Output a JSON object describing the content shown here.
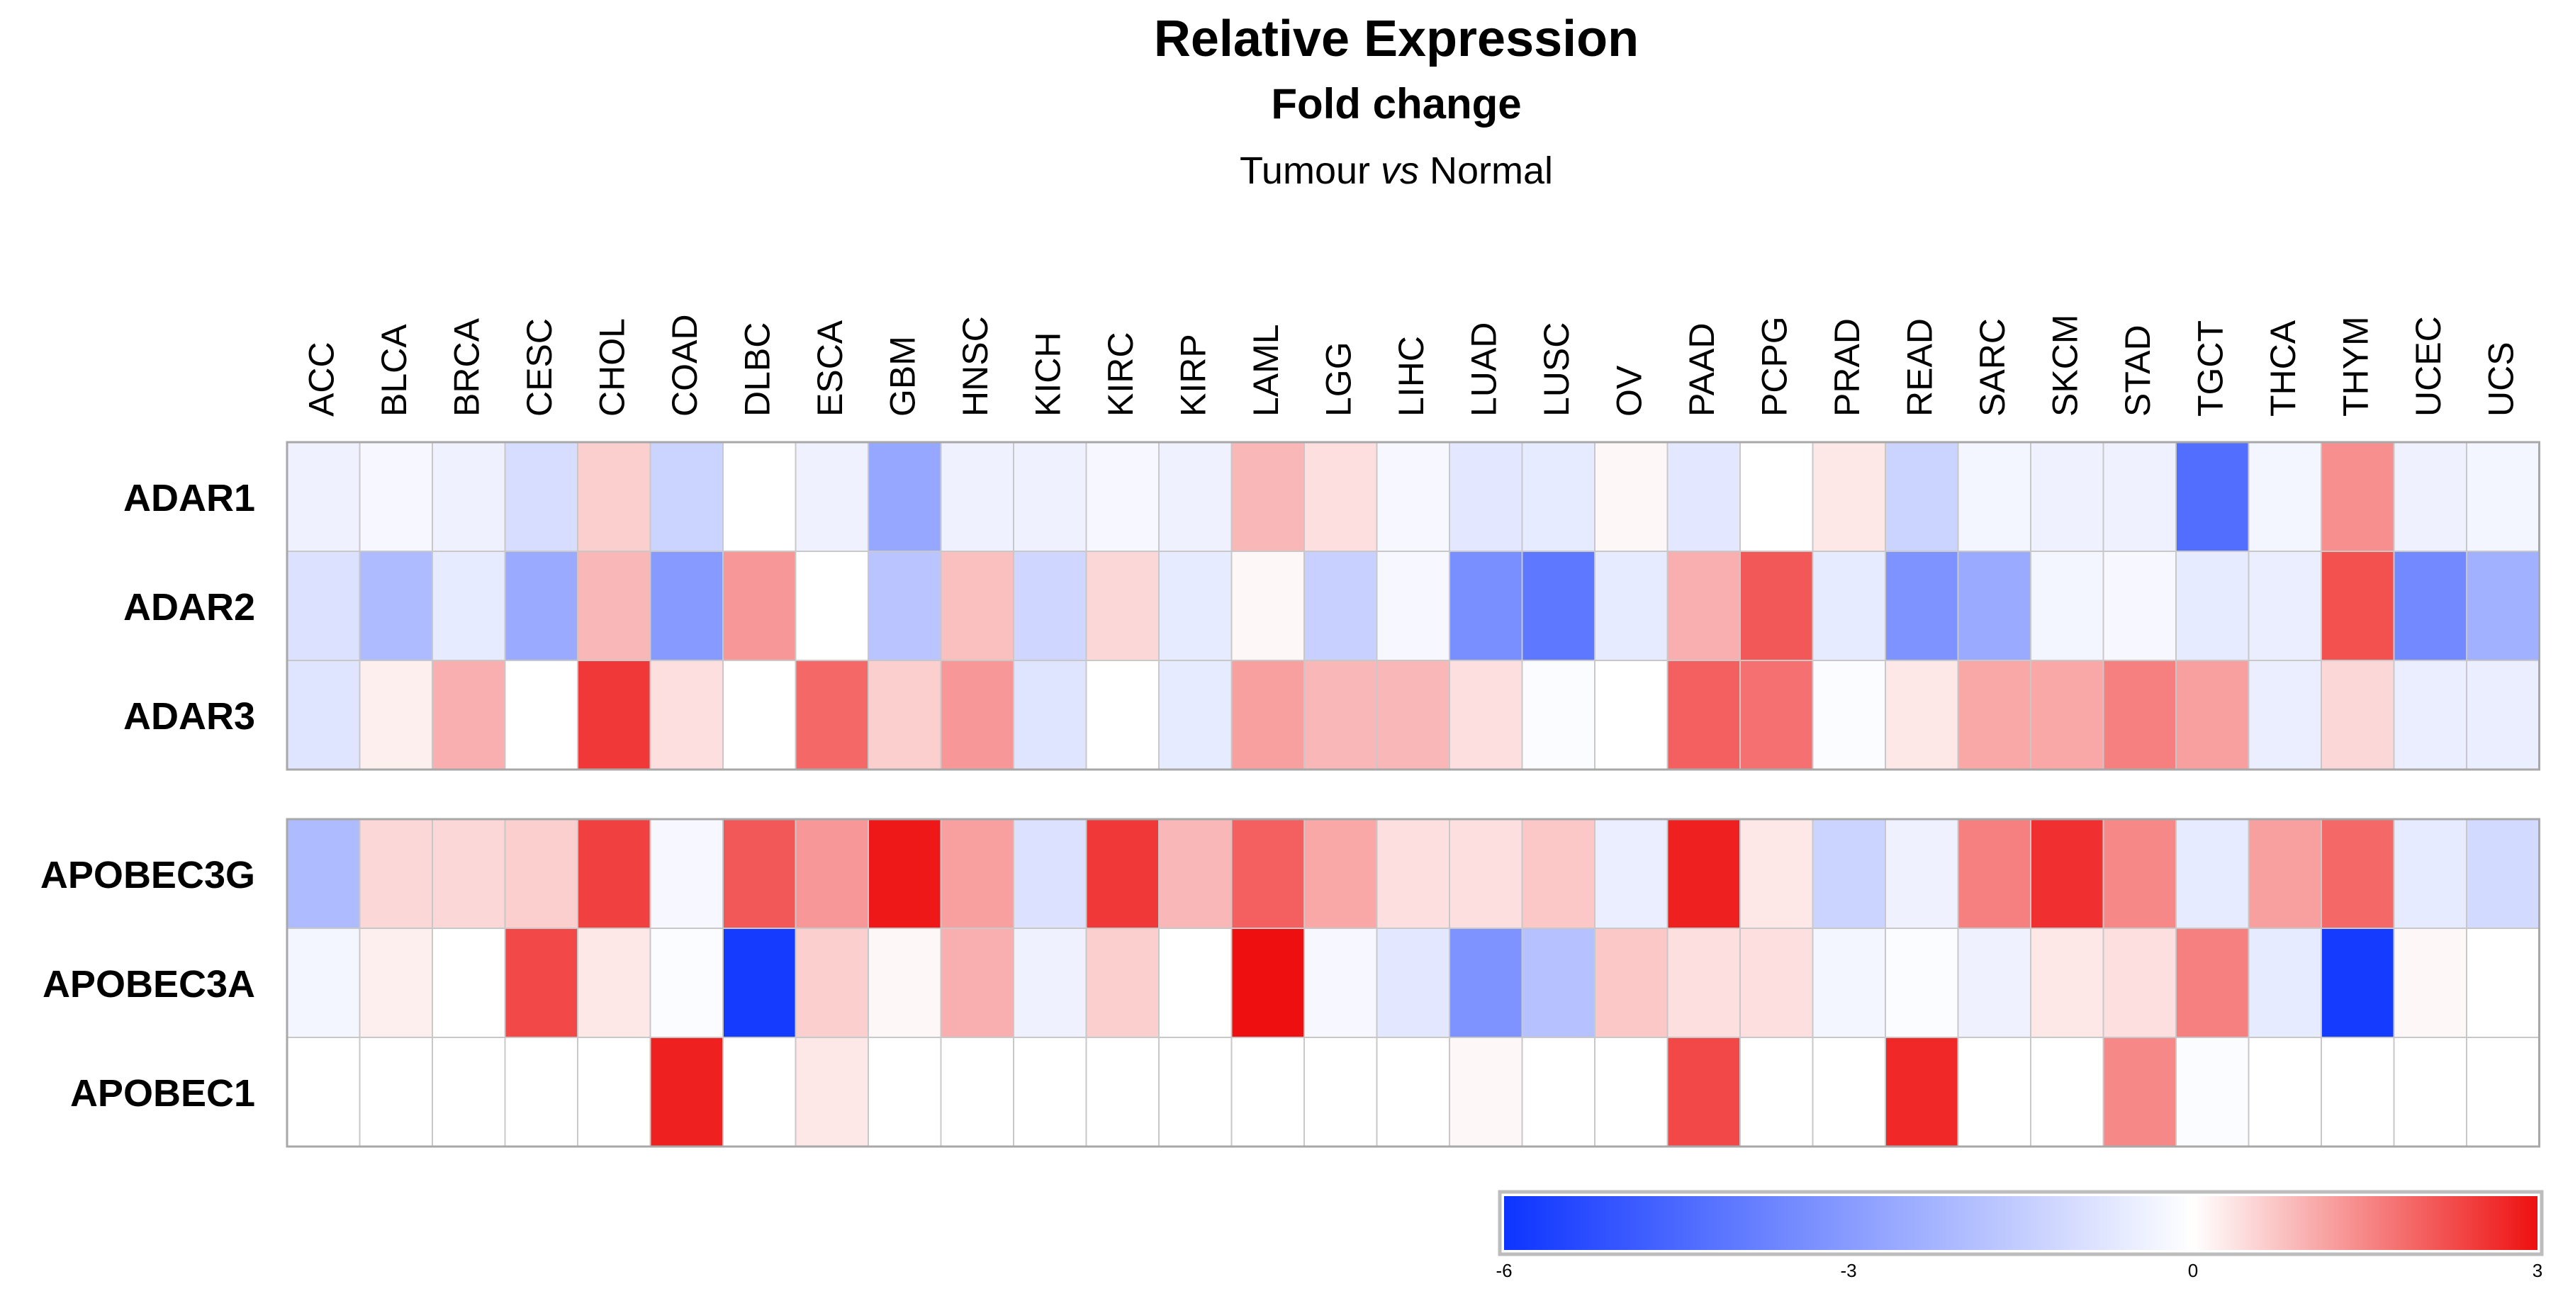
{
  "chart_data": {
    "type": "heatmap",
    "title": "Relative Expression",
    "subtitle": "Fold change",
    "subtitle2_prefix": "Tumour ",
    "subtitle2_emph": "vs",
    "subtitle2_suffix": " Normal",
    "x_categories": [
      "ACC",
      "BLCA",
      "BRCA",
      "CESC",
      "CHOL",
      "COAD",
      "DLBC",
      "ESCA",
      "GBM",
      "HNSC",
      "KICH",
      "KIRC",
      "KIRP",
      "LAML",
      "LGG",
      "LIHC",
      "LUAD",
      "LUSC",
      "OV",
      "PAAD",
      "PCPG",
      "PRAD",
      "READ",
      "SARC",
      "SKCM",
      "STAD",
      "TGCT",
      "THCA",
      "THYM",
      "UCEC",
      "UCS"
    ],
    "groups": [
      {
        "rows": [
          "ADAR1",
          "ADAR2",
          "ADAR3"
        ],
        "values": [
          [
            -0.4,
            -0.2,
            -0.4,
            -1.0,
            0.6,
            -1.3,
            0.0,
            -0.4,
            -2.6,
            -0.4,
            -0.4,
            -0.2,
            -0.4,
            0.9,
            0.4,
            -0.2,
            -0.7,
            -0.6,
            0.1,
            -0.7,
            0.0,
            0.3,
            -1.3,
            -0.3,
            -0.4,
            -0.4,
            -4.3,
            -0.3,
            1.4,
            -0.4,
            -0.3
          ],
          [
            -0.9,
            -2.0,
            -0.6,
            -2.5,
            0.9,
            -3.0,
            1.3,
            0.0,
            -1.7,
            0.8,
            -1.2,
            0.5,
            -0.6,
            0.1,
            -1.4,
            -0.2,
            -3.3,
            -4.0,
            -0.6,
            1.0,
            2.1,
            -0.6,
            -3.2,
            -2.5,
            -0.3,
            -0.2,
            -0.6,
            -0.5,
            2.2,
            -3.5,
            -2.3
          ],
          [
            -0.8,
            0.2,
            1.0,
            0.0,
            2.5,
            0.4,
            0.0,
            1.9,
            0.6,
            1.3,
            -0.8,
            0.0,
            -0.6,
            1.2,
            0.9,
            0.9,
            0.4,
            -0.1,
            0.0,
            2.0,
            1.8,
            -0.1,
            0.3,
            1.1,
            1.1,
            1.6,
            1.2,
            -0.5,
            0.5,
            -0.5,
            -0.5
          ]
        ]
      },
      {
        "rows": [
          "APOBEC3G",
          "APOBEC3A",
          "APOBEC1"
        ],
        "values": [
          [
            -2.0,
            0.5,
            0.5,
            0.6,
            2.4,
            -0.2,
            2.1,
            1.3,
            2.9,
            1.2,
            -0.9,
            2.5,
            0.9,
            2.0,
            1.1,
            0.4,
            0.4,
            0.7,
            -0.5,
            2.8,
            0.3,
            -1.3,
            -0.4,
            1.6,
            2.6,
            1.5,
            -0.6,
            1.2,
            1.9,
            -0.6,
            -1.1
          ],
          [
            -0.3,
            0.2,
            0.0,
            2.3,
            0.3,
            -0.1,
            -5.8,
            0.6,
            0.1,
            1.0,
            -0.4,
            0.6,
            0.0,
            3.0,
            -0.2,
            -0.7,
            -3.2,
            -1.8,
            0.7,
            0.4,
            0.4,
            -0.3,
            -0.1,
            -0.4,
            0.3,
            0.4,
            1.6,
            -0.6,
            -5.8,
            0.1,
            0.0
          ],
          [
            0.0,
            0.0,
            0.0,
            0.0,
            0.0,
            2.8,
            0.0,
            0.3,
            0.0,
            0.0,
            0.0,
            0.0,
            0.0,
            0.0,
            0.0,
            0.0,
            0.1,
            0.0,
            0.0,
            2.3,
            0.0,
            0.0,
            2.7,
            0.0,
            0.0,
            1.5,
            -0.1,
            0.0,
            0.0,
            0.0,
            0.0
          ]
        ]
      }
    ],
    "colorbar": {
      "min": -6,
      "max": 3,
      "ticks": [
        -6,
        -3,
        0,
        3
      ],
      "tick_labels": [
        "-6",
        "-3",
        "0",
        "3"
      ],
      "color_low": "#0d34ff",
      "color_mid": "#ffffff",
      "color_high": "#ee1010"
    },
    "grid": true
  }
}
